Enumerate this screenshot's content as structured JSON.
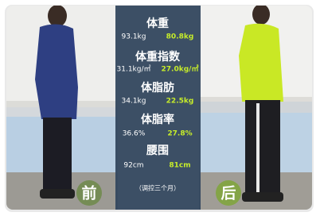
{
  "stats": [
    {
      "label": "体重",
      "before": "93.1kg",
      "after": "80.8kg"
    },
    {
      "label": "体重指数",
      "before": "31.1kg/㎡",
      "after": "27.0kg/㎡"
    },
    {
      "label": "体脂肪",
      "before": "34.1kg",
      "after": "22.5kg"
    },
    {
      "label": "体脂率",
      "before": "36.6%",
      "after": "27.8%"
    },
    {
      "label": "腰围",
      "before": "92cm",
      "after": "81cm"
    }
  ],
  "note": "（调控三个月）",
  "before_label": "前",
  "after_label": "后"
}
